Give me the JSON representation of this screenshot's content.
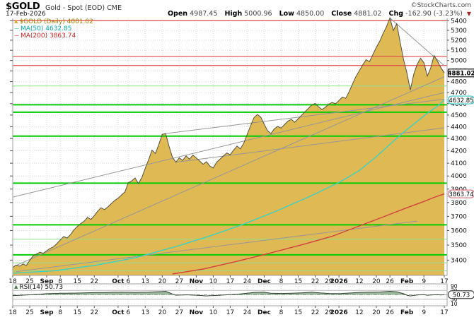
{
  "header": {
    "symbol": "$GOLD",
    "description": "Gold - Spot (EOD) CME",
    "credit": "©StockCharts.com",
    "date": "17-Feb-2026",
    "quote": {
      "open_label": "Open",
      "open": "4987.45",
      "high_label": "High",
      "high": "5000.96",
      "low_label": "Low",
      "low": "4850.00",
      "close_label": "Close",
      "close": "4881.02",
      "chg_label": "Chg",
      "chg": "-162.90 (-3.23%)",
      "direction_icon": "▼"
    }
  },
  "legend": {
    "gold": {
      "glyph": "▲",
      "label": "$GOLD (Daily) 4881.02"
    },
    "ma50": {
      "glyph": "—",
      "label": "MA(50) 4632.85"
    },
    "ma200": {
      "glyph": "—",
      "label": "MA(200) 3863.74"
    },
    "rsi": {
      "glyph": "▲",
      "label": "RSI(14) 50.73"
    }
  },
  "chart_data": {
    "type": "area",
    "title": "$GOLD Gold - Spot (EOD) CME",
    "timeframe": "Daily",
    "y_scale": "log",
    "ylim": [
      3301,
      5424
    ],
    "y_ticks": [
      3400,
      3500,
      3600,
      3700,
      3800,
      3900,
      4000,
      4100,
      4200,
      4300,
      4400,
      4500,
      4600,
      4700,
      4800,
      4900,
      5000,
      5100,
      5200,
      5300,
      5400
    ],
    "days_total": 127,
    "x_ticks": [
      {
        "label": "18",
        "day": 0,
        "bold": false
      },
      {
        "label": "25",
        "day": 5,
        "bold": false
      },
      {
        "label": "Sep",
        "day": 10,
        "bold": true
      },
      {
        "label": "8",
        "day": 14,
        "bold": false
      },
      {
        "label": "15",
        "day": 19,
        "bold": false
      },
      {
        "label": "22",
        "day": 24,
        "bold": false
      },
      {
        "label": "Oct",
        "day": 31,
        "bold": true
      },
      {
        "label": "6",
        "day": 34,
        "bold": false
      },
      {
        "label": "13",
        "day": 39,
        "bold": false
      },
      {
        "label": "20",
        "day": 44,
        "bold": false
      },
      {
        "label": "27",
        "day": 49,
        "bold": false
      },
      {
        "label": "Nov",
        "day": 54,
        "bold": true
      },
      {
        "label": "10",
        "day": 59,
        "bold": false
      },
      {
        "label": "17",
        "day": 64,
        "bold": false
      },
      {
        "label": "24",
        "day": 69,
        "bold": false
      },
      {
        "label": "Dec",
        "day": 74,
        "bold": true
      },
      {
        "label": "8",
        "day": 79,
        "bold": false
      },
      {
        "label": "15",
        "day": 84,
        "bold": false
      },
      {
        "label": "22",
        "day": 89,
        "bold": false
      },
      {
        "label": "29",
        "day": 93,
        "bold": false
      },
      {
        "label": "2026",
        "day": 96,
        "bold": true
      },
      {
        "label": "12",
        "day": 102,
        "bold": false
      },
      {
        "label": "20",
        "day": 107,
        "bold": false
      },
      {
        "label": "26",
        "day": 111,
        "bold": false
      },
      {
        "label": "Feb",
        "day": 116,
        "bold": true
      },
      {
        "label": "9",
        "day": 121,
        "bold": false
      },
      {
        "label": "17",
        "day": 127,
        "bold": false
      }
    ],
    "price": [
      3352,
      3368,
      3360,
      3375,
      3365,
      3398,
      3428,
      3440,
      3452,
      3445,
      3462,
      3478,
      3488,
      3510,
      3535,
      3558,
      3548,
      3572,
      3605,
      3628,
      3648,
      3665,
      3692,
      3678,
      3705,
      3738,
      3762,
      3748,
      3768,
      3792,
      3815,
      3832,
      3856,
      3878,
      3948,
      3962,
      3985,
      3942,
      3988,
      4060,
      4128,
      4205,
      4178,
      4252,
      4335,
      4342,
      4238,
      4148,
      4108,
      4142,
      4122,
      4158,
      4132,
      4165,
      4142,
      4118,
      4092,
      4112,
      4078,
      4062,
      4108,
      4132,
      4158,
      4182,
      4168,
      4205,
      4238,
      4215,
      4262,
      4335,
      4408,
      4478,
      4505,
      4482,
      4422,
      4365,
      4342,
      4382,
      4402,
      4388,
      4418,
      4448,
      4462,
      4438,
      4468,
      4498,
      4528,
      4558,
      4588,
      4602,
      4572,
      4548,
      4568,
      4595,
      4612,
      4598,
      4628,
      4658,
      4648,
      4708,
      4778,
      4848,
      4902,
      4958,
      5008,
      4988,
      5058,
      5128,
      5188,
      5268,
      5338,
      5428,
      5298,
      5368,
      5180,
      5010,
      4880,
      4722,
      4868,
      4962,
      5022,
      4978,
      4852,
      4928,
      5048,
      4992,
      4932,
      4881.02
    ],
    "last_close": 4881.02,
    "ma50": {
      "name": "MA(50)",
      "last": 4632.85,
      "anchors": [
        [
          0,
          3315
        ],
        [
          12,
          3330
        ],
        [
          24,
          3365
        ],
        [
          36,
          3415
        ],
        [
          48,
          3490
        ],
        [
          58,
          3562
        ],
        [
          68,
          3645
        ],
        [
          78,
          3742
        ],
        [
          88,
          3852
        ],
        [
          96,
          3950
        ],
        [
          102,
          4042
        ],
        [
          107,
          4152
        ],
        [
          111,
          4252
        ],
        [
          115,
          4352
        ],
        [
          119,
          4445
        ],
        [
          122,
          4515
        ],
        [
          125,
          4578
        ],
        [
          127,
          4632.85
        ]
      ]
    },
    "ma200": {
      "name": "MA(200)",
      "last": 3863.74,
      "anchors": [
        [
          47,
          3310
        ],
        [
          56,
          3342
        ],
        [
          66,
          3392
        ],
        [
          76,
          3448
        ],
        [
          86,
          3508
        ],
        [
          94,
          3560
        ],
        [
          102,
          3632
        ],
        [
          110,
          3705
        ],
        [
          116,
          3762
        ],
        [
          121,
          3808
        ],
        [
          124,
          3838
        ],
        [
          127,
          3863.74
        ]
      ]
    },
    "hlines": {
      "red": [
        5400,
        5040,
        4952
      ],
      "green_major": [
        4590,
        4525,
        4320,
        3945,
        3640,
        3435
      ],
      "green_minor": [
        4760,
        3540,
        3382,
        3330
      ]
    },
    "trendlines": [
      [
        1,
        3365,
        127,
        4845
      ],
      [
        0,
        3840,
        127,
        4700
      ],
      [
        1,
        3325,
        119,
        3666
      ],
      [
        45,
        4342,
        127,
        4640
      ],
      [
        48,
        4108,
        127,
        4390
      ],
      [
        111,
        5428,
        127,
        4950
      ]
    ],
    "rsi": {
      "name": "RSI(14)",
      "last": 50.73,
      "levels": [
        70,
        30
      ],
      "mid": 50,
      "axis_labels": [
        90,
        70,
        30,
        10
      ],
      "anchors": [
        [
          0,
          46
        ],
        [
          5,
          50
        ],
        [
          10,
          55
        ],
        [
          14,
          57
        ],
        [
          19,
          58
        ],
        [
          24,
          60
        ],
        [
          28,
          61
        ],
        [
          32,
          62
        ],
        [
          36,
          61
        ],
        [
          40,
          62
        ],
        [
          44,
          65
        ],
        [
          45,
          66
        ],
        [
          47,
          54
        ],
        [
          48,
          48
        ],
        [
          51,
          50
        ],
        [
          54,
          48
        ],
        [
          57,
          45
        ],
        [
          60,
          47
        ],
        [
          63,
          50
        ],
        [
          66,
          53
        ],
        [
          69,
          57
        ],
        [
          71,
          61
        ],
        [
          74,
          62
        ],
        [
          76,
          57
        ],
        [
          79,
          56
        ],
        [
          82,
          57
        ],
        [
          85,
          59
        ],
        [
          88,
          62
        ],
        [
          91,
          58
        ],
        [
          93,
          56
        ],
        [
          96,
          55
        ],
        [
          99,
          58
        ],
        [
          102,
          61
        ],
        [
          105,
          62
        ],
        [
          108,
          63
        ],
        [
          111,
          66
        ],
        [
          113,
          64
        ],
        [
          115,
          55
        ],
        [
          116,
          48
        ],
        [
          117,
          45
        ],
        [
          119,
          49
        ],
        [
          121,
          51
        ],
        [
          122,
          48
        ],
        [
          124,
          50
        ],
        [
          125,
          51
        ],
        [
          126,
          49
        ],
        [
          127,
          50.73
        ]
      ]
    },
    "colors": {
      "area_fill": "#dfba54",
      "area_outline": "#55503c",
      "ma50": "#3ed0c0",
      "ma200": "#d24040",
      "green_major": "#00cc00",
      "green_minor": "#8ce08c",
      "red_line": "#e04848",
      "trend": "#969696",
      "grid": "#d9d9d9",
      "border": "#a0a0a0",
      "rsi_fill": "#85a885",
      "rsi_line": "#2f3f2f",
      "box_close_border": "#000000",
      "box_ma50_border": "#30c8c8",
      "box_ma200_border": "#e07888",
      "box_rsi_border": "#444444"
    }
  }
}
